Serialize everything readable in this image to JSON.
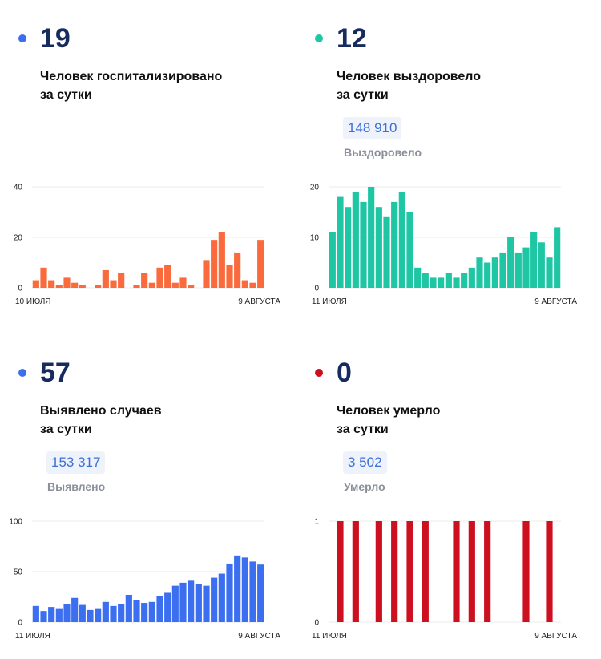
{
  "panels": [
    {
      "dot_color": "#3b6ff0",
      "number": "19",
      "line1": "Человек госпитализировано",
      "line2": "за сутки",
      "total": "",
      "total_label": ""
    },
    {
      "dot_color": "#1fc6a4",
      "number": "12",
      "line1": "Человек выздоровело",
      "line2": "за сутки",
      "total": "148 910",
      "total_label": "Выздоровело"
    },
    {
      "dot_color": "#3b6ff0",
      "number": "57",
      "line1": "Выявлено случаев",
      "line2": "за сутки",
      "total": "153 317",
      "total_label": "Выявлено"
    },
    {
      "dot_color": "#cc1020",
      "number": "0",
      "line1": "Человек умерло",
      "line2": "за сутки",
      "total": "3 502",
      "total_label": "Умерло"
    }
  ],
  "chart_data": [
    {
      "type": "bar",
      "color": "#fa6a3c",
      "start_label": "10 ИЮЛЯ",
      "end_label": "9 АВГУСТА",
      "ylim": [
        0,
        40
      ],
      "yticks": [
        0,
        20,
        40
      ],
      "grid": true,
      "values": [
        3,
        8,
        3,
        1,
        4,
        2,
        1,
        0,
        1,
        7,
        3,
        6,
        0,
        1,
        6,
        2,
        8,
        9,
        2,
        4,
        1,
        0,
        11,
        19,
        22,
        9,
        14,
        3,
        2,
        19
      ]
    },
    {
      "type": "bar",
      "color": "#1fc6a4",
      "start_label": "11 ИЮЛЯ",
      "end_label": "9 АВГУСТА",
      "ylim": [
        0,
        20
      ],
      "yticks": [
        0,
        10,
        20
      ],
      "grid": true,
      "values": [
        11,
        18,
        16,
        19,
        17,
        20,
        16,
        14,
        17,
        19,
        15,
        4,
        3,
        2,
        2,
        3,
        2,
        3,
        4,
        6,
        5,
        6,
        7,
        10,
        7,
        8,
        11,
        9,
        6,
        12
      ]
    },
    {
      "type": "bar",
      "color": "#3b6ff0",
      "start_label": "11 ИЮЛЯ",
      "end_label": "9 АВГУСТА",
      "ylim": [
        0,
        100
      ],
      "yticks": [
        0,
        50,
        100
      ],
      "grid": true,
      "values": [
        16,
        11,
        15,
        13,
        18,
        24,
        17,
        12,
        13,
        20,
        16,
        18,
        27,
        22,
        19,
        20,
        26,
        29,
        36,
        39,
        41,
        38,
        36,
        44,
        48,
        58,
        66,
        64,
        60,
        57
      ]
    },
    {
      "type": "bar",
      "color": "#cc1020",
      "start_label": "11 ИЮЛЯ",
      "end_label": "9 АВГУСТА",
      "ylim": [
        0,
        1
      ],
      "yticks": [
        0,
        1
      ],
      "grid": true,
      "values": [
        0,
        1,
        0,
        1,
        0,
        0,
        1,
        0,
        1,
        0,
        1,
        0,
        1,
        0,
        0,
        0,
        1,
        0,
        1,
        0,
        1,
        0,
        0,
        0,
        0,
        1,
        0,
        0,
        1,
        0
      ]
    }
  ]
}
